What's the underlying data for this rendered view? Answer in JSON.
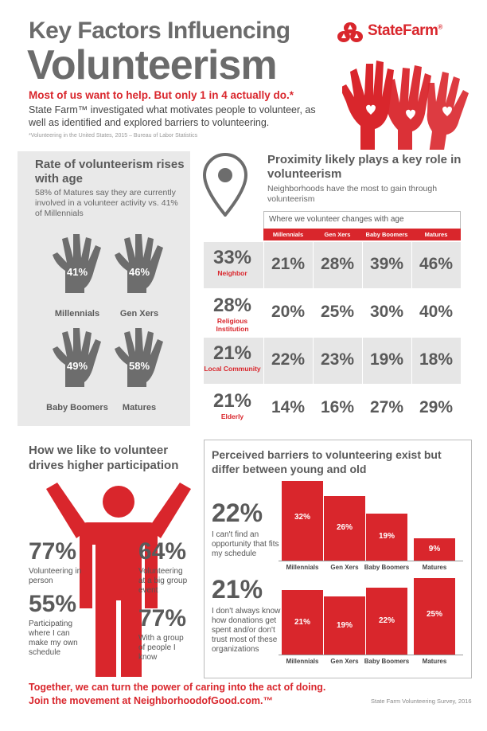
{
  "header": {
    "title_line1": "Key Factors Influencing",
    "title_line2": "Volunteerism",
    "headline": "Most of us want to help. But only 1 in 4 actually do.*",
    "intro": "State Farm™ investigated what motivates people to volunteer, as well as identified and explored barriers to volunteering.",
    "footnote": "*Volunteering in the United States, 2015 – Bureau of Labor Statistics",
    "logo_text": "StateFarm",
    "logo_reg": "®"
  },
  "colors": {
    "accent": "#d9262c",
    "dark_gray": "#5a5a5a",
    "hand_gray": "#6d6d6d",
    "panel_gray": "#e9e9e9"
  },
  "rate": {
    "title": "Rate of volunteerism rises with age",
    "desc": "58% of Matures say they are currently involved in a volunteer activity vs. 41% of Millennials"
  },
  "proximity": {
    "title": "Proximity likely plays a key role in volunteerism",
    "desc": "Neighborhoods have the most to gain through volunteerism",
    "table_caption": "Where we volunteer changes with age"
  },
  "how": {
    "title": "How we like to volunteer drives higher participation",
    "stats": [
      {
        "pct": "77%",
        "desc": "Volunteering in person"
      },
      {
        "pct": "64%",
        "desc": "Volunteering at a big group event"
      },
      {
        "pct": "55%",
        "desc": "Participating where I can make my own schedule"
      },
      {
        "pct": "77%",
        "desc": "With a group of people I know"
      }
    ]
  },
  "barriers_section": {
    "title": "Perceived barriers to volunteering exist but differ between young and old"
  },
  "footer": {
    "line1": "Together, we can turn the power of caring into the act of doing.",
    "line2": "Join the movement at NeighborhoodofGood.com.™",
    "source": "State Farm Volunteering Survey, 2016"
  },
  "chart_data": [
    {
      "type": "bar",
      "title": "Rate of volunteerism rises with age",
      "categories": [
        "Millennials",
        "Gen Xers",
        "Baby Boomers",
        "Matures"
      ],
      "values": [
        41,
        46,
        49,
        58
      ],
      "labels": [
        "41%",
        "46%",
        "49%",
        "58%"
      ]
    },
    {
      "type": "table",
      "title": "Where we volunteer changes with age",
      "columns": [
        "Millennials",
        "Gen Xers",
        "Baby Boomers",
        "Matures"
      ],
      "rows": [
        {
          "total": "33%",
          "label": "Neighbor",
          "values": [
            "21%",
            "28%",
            "39%",
            "46%"
          ]
        },
        {
          "total": "28%",
          "label": "Religious Institution",
          "values": [
            "20%",
            "25%",
            "30%",
            "40%"
          ]
        },
        {
          "total": "21%",
          "label": "Local Community",
          "values": [
            "22%",
            "23%",
            "19%",
            "18%"
          ]
        },
        {
          "total": "21%",
          "label": "Elderly",
          "values": [
            "14%",
            "16%",
            "27%",
            "29%"
          ]
        }
      ]
    },
    {
      "type": "bar",
      "categories": [
        "Millennials",
        "Gen Xers",
        "Baby Boomers",
        "Matures"
      ],
      "headline": "22%",
      "desc": "I can't find an opportunity that fits my schedule",
      "values": [
        32,
        26,
        19,
        9
      ],
      "labels": [
        "32%",
        "26%",
        "19%",
        "9%"
      ],
      "ylim": [
        0,
        32
      ]
    },
    {
      "type": "bar",
      "categories": [
        "Millennials",
        "Gen Xers",
        "Baby Boomers",
        "Matures"
      ],
      "headline": "21%",
      "desc": "I don't always know how donations get spent and/or don't trust most of these organizations",
      "values": [
        21,
        19,
        22,
        25
      ],
      "labels": [
        "21%",
        "19%",
        "22%",
        "25%"
      ],
      "ylim": [
        0,
        25
      ]
    }
  ]
}
